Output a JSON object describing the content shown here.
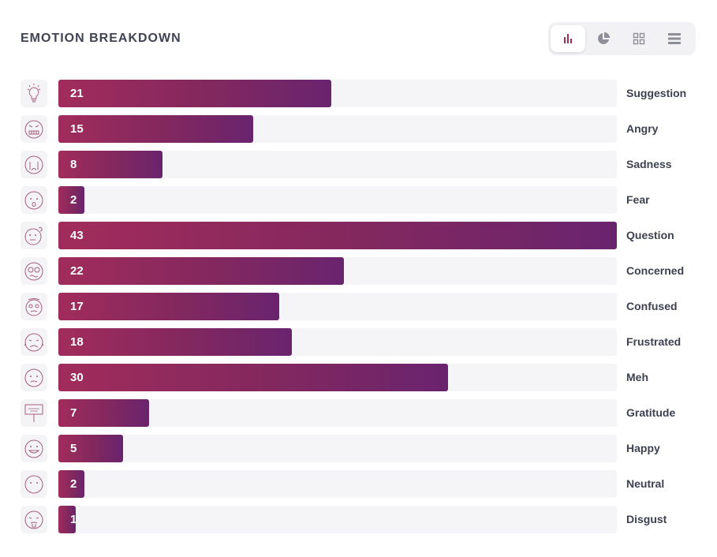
{
  "header": {
    "title": "EMOTION BREAKDOWN"
  },
  "view_toggle": [
    {
      "icon": "bar-chart-icon",
      "active": true
    },
    {
      "icon": "pie-chart-icon",
      "active": false
    },
    {
      "icon": "grid-icon",
      "active": false
    },
    {
      "icon": "list-icon",
      "active": false
    }
  ],
  "colors": {
    "bar_start": "#a12c5b",
    "bar_end": "#69246e",
    "track": "#f5f5f8",
    "active_icon": "#a12c5b",
    "inactive_icon": "#8e8e98"
  },
  "chart_data": {
    "type": "bar",
    "orientation": "horizontal",
    "title": "EMOTION BREAKDOWN",
    "categories": [
      "Suggestion",
      "Angry",
      "Sadness",
      "Fear",
      "Question",
      "Concerned",
      "Confused",
      "Frustrated",
      "Meh",
      "Gratitude",
      "Happy",
      "Neutral",
      "Disgust"
    ],
    "values": [
      21,
      15,
      8,
      2,
      43,
      22,
      17,
      18,
      30,
      7,
      5,
      2,
      1
    ],
    "icons": [
      "lightbulb-icon",
      "angry-face-icon",
      "crying-face-icon",
      "fearful-face-icon",
      "question-face-icon",
      "concerned-face-icon",
      "confused-face-icon",
      "frustrated-face-icon",
      "meh-face-icon",
      "thank-you-sign-icon",
      "happy-face-icon",
      "neutral-face-icon",
      "disgust-face-icon"
    ],
    "xlim": [
      0,
      43
    ],
    "xlabel": "",
    "ylabel": "",
    "grid": false
  }
}
